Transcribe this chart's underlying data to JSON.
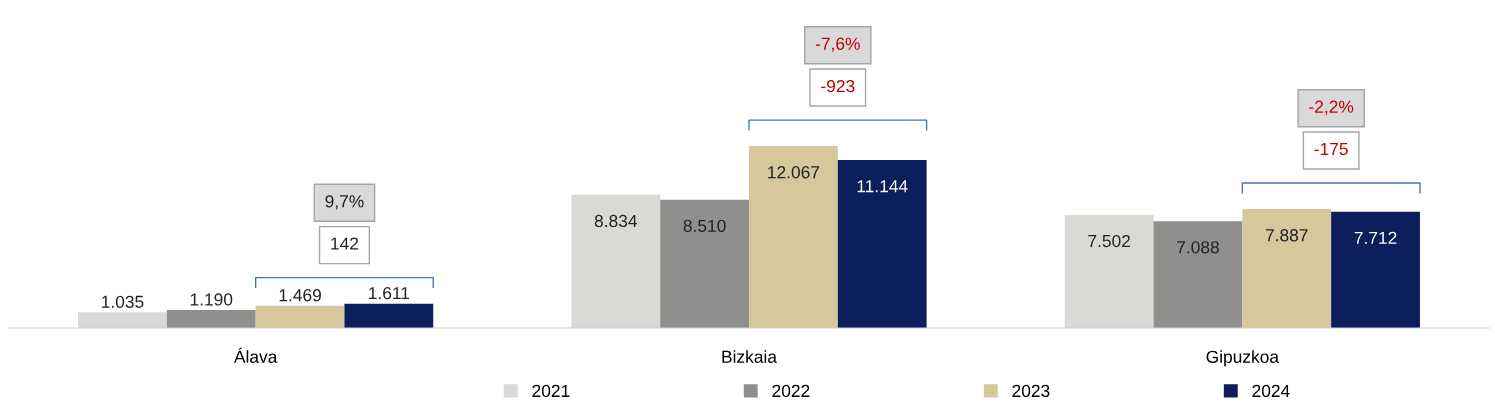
{
  "chart_data": {
    "type": "bar",
    "categories": [
      "Álava",
      "Bizkaia",
      "Gipuzkoa"
    ],
    "series": [
      {
        "name": "2021",
        "color": "#d9d9d6",
        "values": [
          1035,
          8834,
          7502
        ],
        "value_labels": [
          "1.035",
          "8.834",
          "7.502"
        ]
      },
      {
        "name": "2022",
        "color": "#8f8f8d",
        "values": [
          1190,
          8510,
          7088
        ],
        "value_labels": [
          "1.190",
          "8.510",
          "7.088"
        ]
      },
      {
        "name": "2023",
        "color": "#d6c79c",
        "values": [
          1469,
          12067,
          7887
        ],
        "value_labels": [
          "1.469",
          "12.067",
          "7.887"
        ]
      },
      {
        "name": "2024",
        "color": "#0c1f5c",
        "values": [
          1611,
          11144,
          7712
        ],
        "value_labels": [
          "1.611",
          "11.144",
          "7.712"
        ]
      }
    ],
    "annotations": [
      "9,7%",
      "142",
      "-7,6%",
      "-923",
      "-2,2%",
      "-175"
    ],
    "legend": "bottom",
    "grid": false
  }
}
